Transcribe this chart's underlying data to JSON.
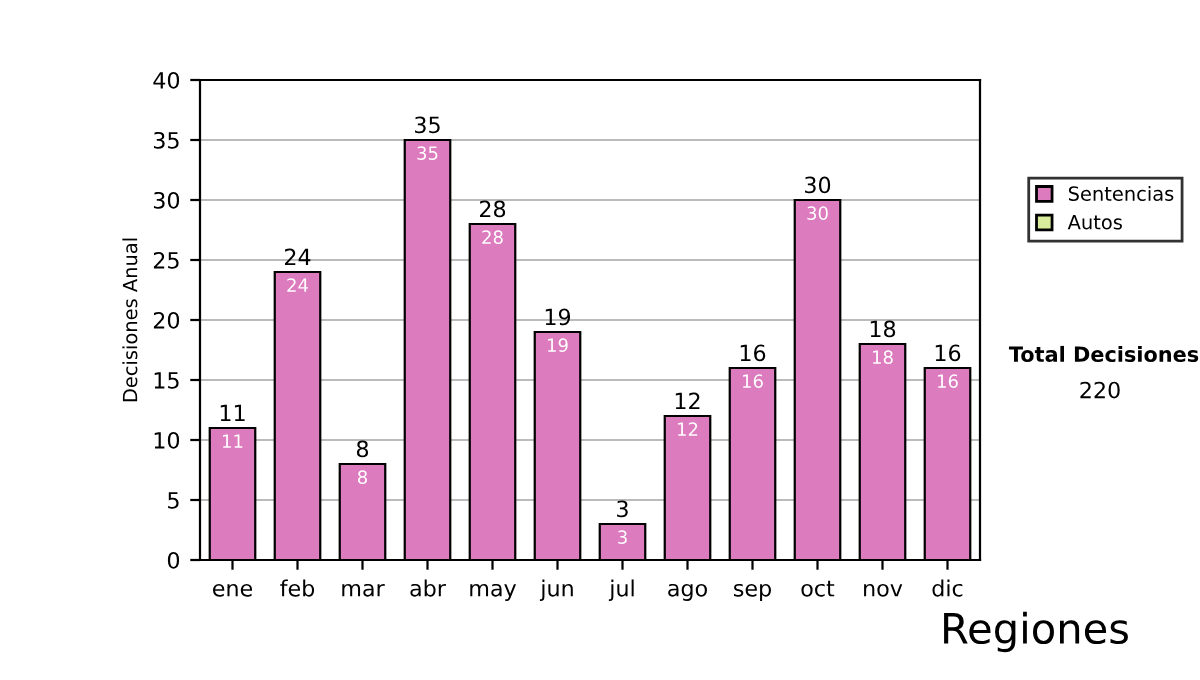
{
  "chart_data": {
    "type": "bar",
    "stacked": true,
    "ylabel": "Decisiones Anual",
    "categories": [
      "ene",
      "feb",
      "mar",
      "abr",
      "may",
      "jun",
      "jul",
      "ago",
      "sep",
      "oct",
      "nov",
      "dic"
    ],
    "series": [
      {
        "name": "Sentencias",
        "color": "#dd7bbf",
        "values": [
          11,
          24,
          8,
          35,
          28,
          19,
          3,
          12,
          16,
          30,
          18,
          16
        ],
        "value_labels": [
          "11",
          "24",
          "8",
          "35",
          "28",
          "19",
          "3",
          "12",
          "16",
          "30",
          "18",
          "16"
        ]
      },
      {
        "name": "Autos",
        "color": "#d8ec9c",
        "values": [
          0,
          0,
          0,
          0,
          0,
          0,
          0,
          0,
          0,
          0,
          0,
          0
        ]
      }
    ],
    "totals": [
      "11",
      "24",
      "8",
      "35",
      "28",
      "19",
      "3",
      "12",
      "16",
      "30",
      "18",
      "16"
    ],
    "ylim": [
      0,
      40
    ],
    "yticks": [
      0,
      5,
      10,
      15,
      20,
      25,
      30,
      35,
      40
    ],
    "grid": "y",
    "legend": "right",
    "annotations": [
      "Total Decisiones",
      "220",
      "Regiones"
    ]
  }
}
